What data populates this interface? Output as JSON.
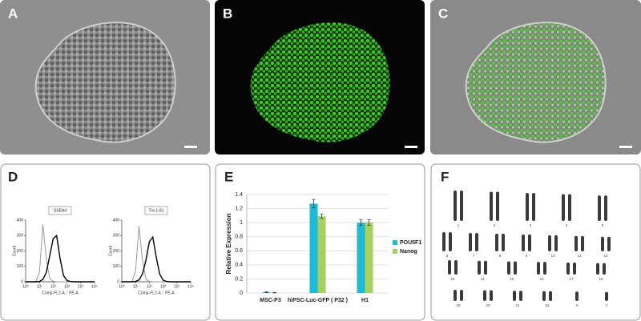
{
  "panel_labels": [
    "A",
    "B",
    "C",
    "D",
    "E",
    "F"
  ],
  "chart_data": [
    {
      "type": "line",
      "title": "SSEA4",
      "xlabel": "Comp-FL2-A :: PE-A",
      "ylabel": "Count",
      "xscale": "log",
      "x": [
        1,
        1.78,
        3.16,
        5.62,
        10,
        17.8,
        31.6,
        56.2,
        100,
        178,
        316,
        562,
        1000,
        1778,
        3162,
        5623,
        10000,
        17783,
        31623,
        56234,
        100000
      ],
      "xlim": [
        1,
        100000
      ],
      "xticks": [
        {
          "value": 1,
          "label": "10⁰"
        },
        {
          "value": 10,
          "label": "10¹"
        },
        {
          "value": 100,
          "label": "10²"
        },
        {
          "value": 1000,
          "label": "10³"
        },
        {
          "value": 10000,
          "label": "10⁴"
        },
        {
          "value": 100000,
          "label": "10⁵"
        }
      ],
      "ylim": [
        0,
        400
      ],
      "yticks": [
        0,
        100,
        200,
        300,
        400
      ],
      "series": [
        {
          "color": "#999999",
          "values": [
            0,
            0,
            0,
            2,
            60,
            370,
            150,
            20,
            3,
            0,
            0,
            0,
            0,
            0,
            0,
            0,
            0,
            0,
            0,
            0,
            0
          ]
        },
        {
          "color": "#000000",
          "values": [
            0,
            0,
            0,
            0,
            2,
            15,
            60,
            170,
            280,
            300,
            150,
            40,
            8,
            2,
            0,
            0,
            0,
            0,
            0,
            0,
            0
          ]
        }
      ]
    },
    {
      "type": "line",
      "title": "Tra-1-81",
      "xlabel": "Comp-FL2-A :: PE-A",
      "ylabel": "Count",
      "xscale": "log",
      "x": [
        1,
        1.78,
        3.16,
        5.62,
        10,
        17.8,
        31.6,
        56.2,
        100,
        178,
        316,
        562,
        1000,
        1778,
        3162,
        5623,
        10000,
        17783,
        31623,
        56234,
        100000
      ],
      "xlim": [
        1,
        100000
      ],
      "xticks": [
        {
          "value": 1,
          "label": "10⁰"
        },
        {
          "value": 10,
          "label": "10¹"
        },
        {
          "value": 100,
          "label": "10²"
        },
        {
          "value": 1000,
          "label": "10³"
        },
        {
          "value": 10000,
          "label": "10⁴"
        },
        {
          "value": 100000,
          "label": "10⁵"
        }
      ],
      "ylim": [
        0,
        400
      ],
      "yticks": [
        0,
        100,
        200,
        300,
        400
      ],
      "series": [
        {
          "color": "#999999",
          "values": [
            0,
            0,
            0,
            3,
            70,
            360,
            140,
            18,
            2,
            0,
            0,
            0,
            0,
            0,
            0,
            0,
            0,
            0,
            0,
            0,
            0
          ]
        },
        {
          "color": "#000000",
          "values": [
            0,
            0,
            0,
            0,
            2,
            12,
            50,
            140,
            260,
            290,
            160,
            50,
            10,
            2,
            0,
            0,
            0,
            0,
            0,
            0,
            0
          ]
        }
      ]
    },
    {
      "type": "bar",
      "ylabel": "Relative Expression",
      "categories": [
        "MSC-P3",
        "hiPSC-Luc-GFP ( P32 )",
        "H1"
      ],
      "ylim": [
        0,
        1.4
      ],
      "yticks": [
        0,
        0.2,
        0.4,
        0.6,
        0.8,
        1,
        1.2,
        1.4
      ],
      "grid": true,
      "legend": "right",
      "series": [
        {
          "name": "POU5F1",
          "color": "#1ebad6",
          "values": [
            0.01,
            1.27,
            1.0
          ],
          "errors": [
            0.005,
            0.06,
            0.04
          ]
        },
        {
          "name": "Nanog",
          "color": "#a6d060",
          "values": [
            0.005,
            1.09,
            1.0
          ],
          "errors": [
            0.003,
            0.03,
            0.04
          ]
        }
      ]
    }
  ],
  "karyotype": {
    "labels": [
      "1",
      "2",
      "3",
      "4",
      "5",
      "6",
      "7",
      "8",
      "9",
      "10",
      "11",
      "12",
      "13",
      "14",
      "15",
      "16",
      "17",
      "18",
      "19",
      "20",
      "21",
      "22",
      "X",
      "Y"
    ]
  }
}
